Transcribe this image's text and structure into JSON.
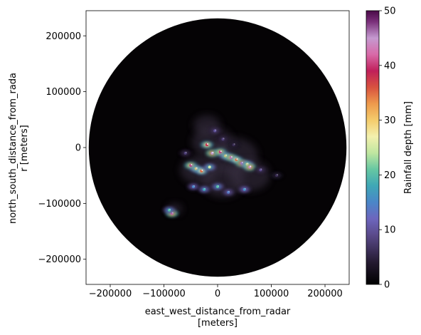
{
  "chart_data": {
    "type": "heatmap",
    "x_axis": {
      "label_line1": "east_west_distance_from_radar",
      "label_line2": "[meters]",
      "range": [
        -245000,
        245000
      ],
      "ticks": [
        -200000,
        -100000,
        0,
        100000,
        200000
      ],
      "tick_labels": [
        "−200000",
        "−100000",
        "0",
        "100000",
        "200000"
      ]
    },
    "y_axis": {
      "label_line1": "north_south_distance_from_rada",
      "label_line2": "r [meters]",
      "range": [
        -245000,
        245000
      ],
      "ticks": [
        200000,
        100000,
        0,
        -100000,
        -200000
      ],
      "tick_labels": [
        "200000",
        "100000",
        "0",
        "−100000",
        "−200000"
      ]
    },
    "radar_range_m": 240000,
    "colorbar": {
      "label": "Rainfall depth [mm]",
      "colormap": "cubehelix-like (black-purple-blue-green-yellow-orange-red-pink-purple)",
      "range": [
        0,
        50
      ],
      "ticks": [
        0,
        10,
        20,
        30,
        40,
        50
      ],
      "tick_labels": [
        "0",
        "10",
        "20",
        "30",
        "40",
        "50"
      ]
    },
    "background_color": "#050305",
    "rain_cells": [
      {
        "x": -20000,
        "y": 5000,
        "mm": 38
      },
      {
        "x": -10000,
        "y": -10000,
        "mm": 45
      },
      {
        "x": 5000,
        "y": -8000,
        "mm": 40
      },
      {
        "x": 15000,
        "y": -15000,
        "mm": 30
      },
      {
        "x": 25000,
        "y": -18000,
        "mm": 42
      },
      {
        "x": 35000,
        "y": -22000,
        "mm": 35
      },
      {
        "x": 45000,
        "y": -28000,
        "mm": 46
      },
      {
        "x": 55000,
        "y": -30000,
        "mm": 28
      },
      {
        "x": 60000,
        "y": -35000,
        "mm": 44
      },
      {
        "x": -50000,
        "y": -32000,
        "mm": 40
      },
      {
        "x": -40000,
        "y": -38000,
        "mm": 30
      },
      {
        "x": -30000,
        "y": -42000,
        "mm": 35
      },
      {
        "x": -15000,
        "y": -35000,
        "mm": 25
      },
      {
        "x": -25000,
        "y": -75000,
        "mm": 18
      },
      {
        "x": -45000,
        "y": -70000,
        "mm": 15
      },
      {
        "x": 0,
        "y": -70000,
        "mm": 20
      },
      {
        "x": 20000,
        "y": -80000,
        "mm": 14
      },
      {
        "x": 50000,
        "y": -75000,
        "mm": 16
      },
      {
        "x": -85000,
        "y": -118000,
        "mm": 42
      },
      {
        "x": -90000,
        "y": -112000,
        "mm": 20
      },
      {
        "x": -5000,
        "y": 30000,
        "mm": 10
      },
      {
        "x": 10000,
        "y": 15000,
        "mm": 8
      },
      {
        "x": 30000,
        "y": 5000,
        "mm": 6
      },
      {
        "x": -60000,
        "y": -10000,
        "mm": 8
      },
      {
        "x": 80000,
        "y": -40000,
        "mm": 9
      },
      {
        "x": 110000,
        "y": -50000,
        "mm": 6
      }
    ]
  }
}
